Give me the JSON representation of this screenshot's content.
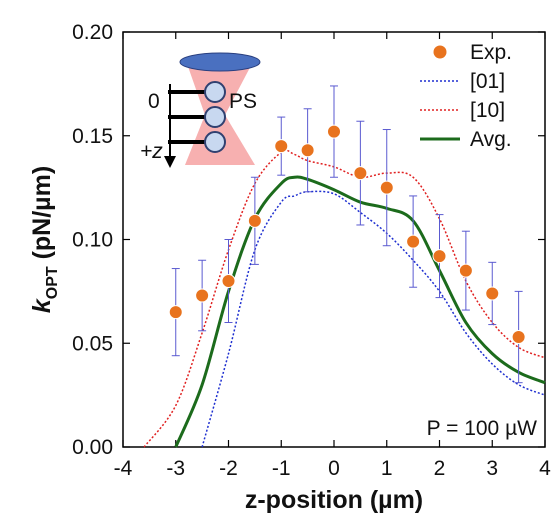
{
  "chart_data": {
    "type": "line",
    "xlabel": "z-position (µm)",
    "ylabel": {
      "symbol": "k",
      "subscript": "OPT",
      "unit": "(pN/µm)"
    },
    "xlim": [
      -4,
      4
    ],
    "ylim": [
      0,
      0.2
    ],
    "xticks": [
      -4,
      -3,
      -2,
      -1,
      0,
      1,
      2,
      3,
      4
    ],
    "yticks": [
      {
        "value": 0,
        "label": "0.00"
      },
      {
        "value": 0.05,
        "label": "0.05"
      },
      {
        "value": 0.1,
        "label": "0.10"
      },
      {
        "value": 0.15,
        "label": "0.15"
      },
      {
        "value": 0.2,
        "label": "0.20"
      }
    ],
    "legend": "top-right",
    "annotations": {
      "power": "P = 100 µW",
      "inset_zero": "0",
      "inset_ps": "PS",
      "inset_z": "+z"
    },
    "x": [
      -3.6,
      -3,
      -2.5,
      -2,
      -1.5,
      -1,
      -0.75,
      -0.5,
      0,
      0.5,
      1,
      1.5,
      2,
      2.5,
      3,
      3.5,
      4
    ],
    "series": [
      {
        "name": "Exp.",
        "type": "scatter",
        "color": "#e8731e",
        "x": [
          -3,
          -2.5,
          -2,
          -1.5,
          -1,
          -0.5,
          0,
          0.5,
          1,
          1.5,
          2,
          2.5,
          3,
          3.5
        ],
        "values": [
          0.065,
          0.073,
          0.08,
          0.109,
          0.145,
          0.143,
          0.152,
          0.132,
          0.125,
          0.099,
          0.092,
          0.085,
          0.074,
          0.053
        ],
        "errors": [
          0.021,
          0.017,
          0.02,
          0.021,
          0.014,
          0.02,
          0.022,
          0.025,
          0.028,
          0.022,
          0.02,
          0.019,
          0.015,
          0.022
        ],
        "error_color": "#5a5ad0"
      },
      {
        "name": "[01]",
        "color": "#1e2fd0",
        "dash": "dotted",
        "values": [
          null,
          null,
          0.0,
          0.045,
          0.095,
          0.118,
          0.121,
          0.123,
          0.122,
          0.113,
          0.103,
          0.09,
          0.075,
          0.055,
          0.04,
          0.03,
          0.025
        ]
      },
      {
        "name": "[10]",
        "color": "#e02020",
        "dash": "dotted",
        "values": [
          0.0,
          0.02,
          0.055,
          0.095,
          0.127,
          0.142,
          0.141,
          0.138,
          0.135,
          0.13,
          0.132,
          0.13,
          0.11,
          0.08,
          0.06,
          0.048,
          0.043
        ]
      },
      {
        "name": "Avg.",
        "color": "#1c6b1c",
        "dash": "solid",
        "values": [
          null,
          0.0,
          0.03,
          0.075,
          0.11,
          0.127,
          0.13,
          0.129,
          0.124,
          0.118,
          0.115,
          0.109,
          0.085,
          0.06,
          0.045,
          0.036,
          0.031
        ]
      }
    ]
  }
}
